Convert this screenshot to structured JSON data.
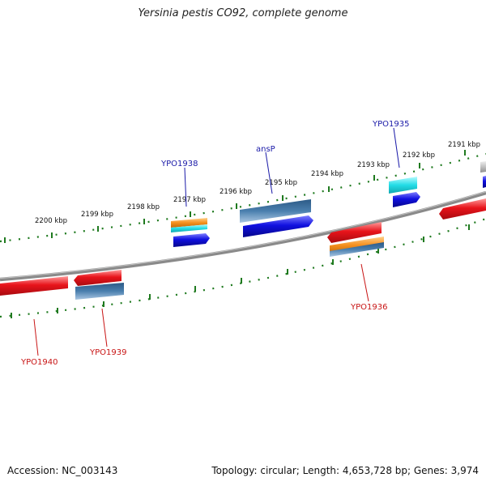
{
  "title": "Yersinia pestis CO92, complete genome",
  "footer": {
    "accession": "Accession: NC_003143",
    "stats": "Topology: circular; Length: 4,653,728 bp; Genes: 3,974"
  },
  "scale_labels": [
    "2200 kbp",
    "2199 kbp",
    "2198 kbp",
    "2197 kbp",
    "2196 kbp",
    "2195 kbp",
    "2194 kbp",
    "2193 kbp",
    "2192 kbp",
    "2191 kbp"
  ],
  "gene_labels": {
    "forward": [
      "YPO1938",
      "ansP",
      "YPO1935"
    ],
    "reverse": [
      "YPO1936",
      "YPO1939",
      "YPO1940"
    ]
  },
  "colors": {
    "forward_label": "#1a1aa8",
    "reverse_label": "#c81414",
    "backbone": "#8a8a8a",
    "ticks": "#1f7a1f",
    "red": "#e8141b",
    "blue": "#1010e0",
    "steel": "#4a7fae",
    "cyan": "#22dce6",
    "orange": "#f5901e",
    "grey": "#c0c0c0"
  }
}
